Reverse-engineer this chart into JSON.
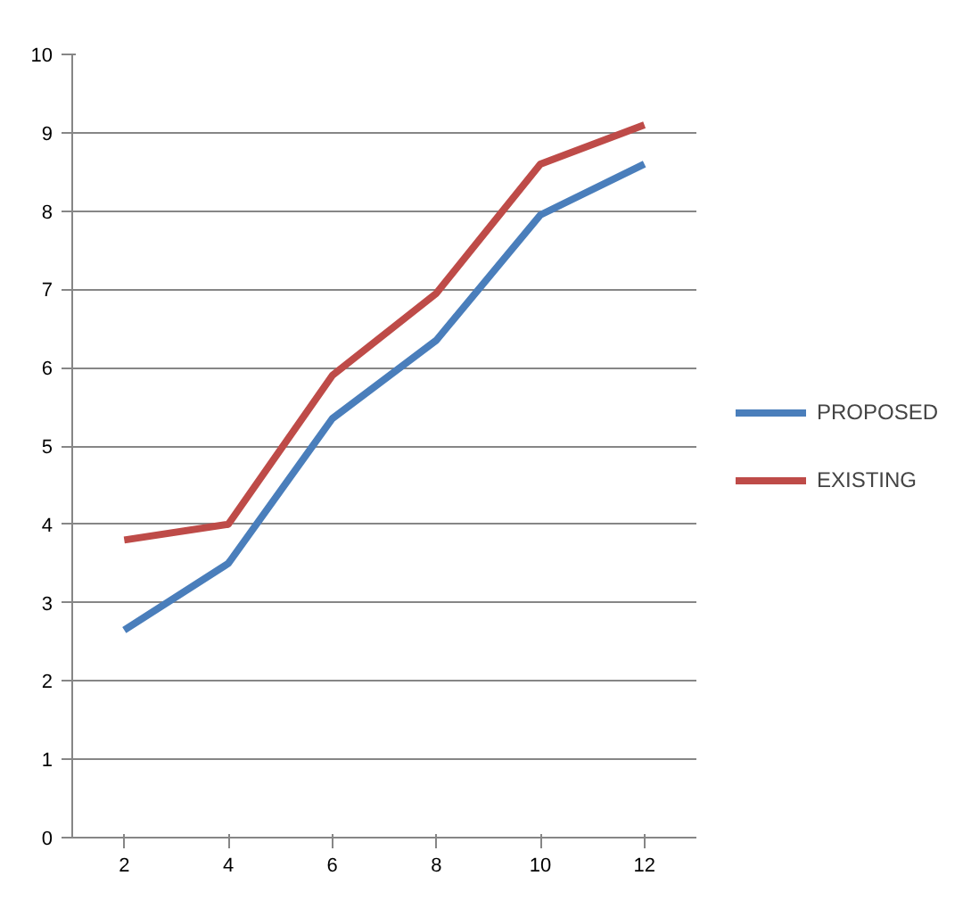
{
  "chart_data": {
    "type": "line",
    "categories": [
      "2",
      "4",
      "6",
      "8",
      "10",
      "12"
    ],
    "series": [
      {
        "name": "PROPOSED",
        "color": "#4a7ebb",
        "values": [
          2.65,
          3.5,
          5.35,
          6.35,
          7.95,
          8.6
        ]
      },
      {
        "name": "EXISTING",
        "color": "#be4b48",
        "values": [
          3.8,
          4.0,
          5.9,
          6.95,
          8.6,
          9.1
        ]
      }
    ],
    "ylim": [
      0,
      10
    ],
    "yticks": [
      0,
      1,
      2,
      3,
      4,
      5,
      6,
      7,
      8,
      9,
      10
    ],
    "grid": "y",
    "legend": "right",
    "marker": "none",
    "line_style": "solid"
  }
}
